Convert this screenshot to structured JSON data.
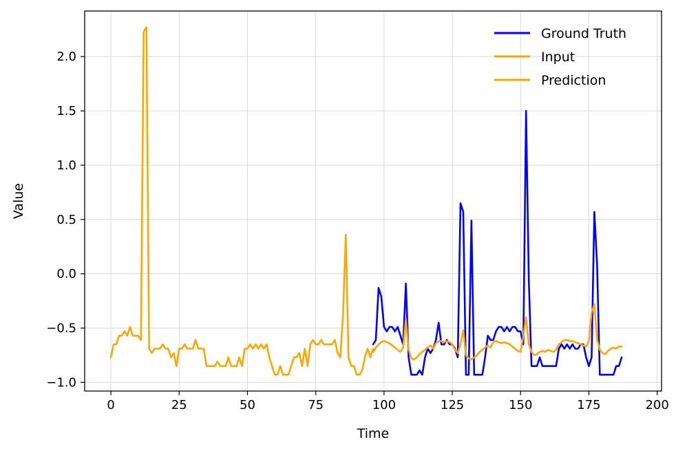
{
  "chart_data": {
    "type": "line",
    "xlabel": "Time",
    "ylabel": "Value",
    "xlim": [
      -9.6,
      201.6
    ],
    "ylim": [
      -1.08,
      2.42
    ],
    "xticks": [
      0,
      25,
      50,
      75,
      100,
      125,
      150,
      175,
      200
    ],
    "xtick_labels": [
      "0",
      "25",
      "50",
      "75",
      "100",
      "125",
      "150",
      "175",
      "200"
    ],
    "yticks": [
      -1.0,
      -0.5,
      0.0,
      0.5,
      1.0,
      1.5,
      2.0
    ],
    "ytick_labels": [
      "−1.0",
      "−0.5",
      "0.0",
      "0.5",
      "1.0",
      "1.5",
      "2.0"
    ],
    "grid": true,
    "legend_position": "top-right",
    "series": [
      {
        "name": "Ground Truth",
        "color": "#0000ff",
        "x_start": 96,
        "values": [
          -0.65,
          -0.61,
          -0.13,
          -0.21,
          -0.49,
          -0.53,
          -0.49,
          -0.49,
          -0.53,
          -0.49,
          -0.57,
          -0.65,
          -0.09,
          -0.77,
          -0.93,
          -0.93,
          -0.93,
          -0.89,
          -0.93,
          -0.77,
          -0.69,
          -0.73,
          -0.69,
          -0.61,
          -0.45,
          -0.65,
          -0.65,
          -0.61,
          -0.65,
          -0.65,
          -0.69,
          -0.77,
          0.65,
          0.57,
          -0.93,
          -0.93,
          0.49,
          -0.93,
          -0.93,
          -0.93,
          -0.93,
          -0.77,
          -0.57,
          -0.61,
          -0.61,
          -0.53,
          -0.49,
          -0.49,
          -0.53,
          -0.49,
          -0.53,
          -0.49,
          -0.49,
          -0.53,
          -0.53,
          -0.65,
          1.5,
          -0.05,
          -0.85,
          -0.85,
          -0.85,
          -0.77,
          -0.85,
          -0.85,
          -0.85,
          -0.85,
          -0.85,
          -0.85,
          -0.69,
          -0.65,
          -0.69,
          -0.65,
          -0.69,
          -0.65,
          -0.69,
          -0.69,
          -0.65,
          -0.65,
          -0.77,
          -0.85,
          -0.77,
          0.57,
          0.09,
          -0.93,
          -0.93,
          -0.93,
          -0.93,
          -0.93,
          -0.93,
          -0.85,
          -0.85,
          -0.77
        ]
      },
      {
        "name": "Input",
        "color": "#ffa500",
        "x_start": 0,
        "values": [
          -0.77,
          -0.65,
          -0.65,
          -0.57,
          -0.57,
          -0.53,
          -0.57,
          -0.49,
          -0.57,
          -0.57,
          -0.57,
          -0.61,
          2.23,
          2.27,
          -0.69,
          -0.73,
          -0.69,
          -0.69,
          -0.69,
          -0.65,
          -0.69,
          -0.69,
          -0.77,
          -0.73,
          -0.85,
          -0.69,
          -0.69,
          -0.65,
          -0.69,
          -0.69,
          -0.69,
          -0.61,
          -0.69,
          -0.69,
          -0.69,
          -0.85,
          -0.85,
          -0.85,
          -0.85,
          -0.81,
          -0.85,
          -0.85,
          -0.85,
          -0.77,
          -0.85,
          -0.85,
          -0.85,
          -0.77,
          -0.85,
          -0.69,
          -0.69,
          -0.65,
          -0.69,
          -0.65,
          -0.69,
          -0.65,
          -0.69,
          -0.65,
          -0.77,
          -0.85,
          -0.93,
          -0.93,
          -0.85,
          -0.93,
          -0.93,
          -0.93,
          -0.85,
          -0.77,
          -0.77,
          -0.73,
          -0.85,
          -0.69,
          -0.85,
          -0.65,
          -0.61,
          -0.65,
          -0.65,
          -0.61,
          -0.65,
          -0.65,
          -0.65,
          -0.65,
          -0.61,
          -0.73,
          -0.77,
          -0.37,
          0.36,
          -0.77,
          -0.85,
          -0.85,
          -0.93,
          -0.93,
          -0.89,
          -0.77,
          -0.69,
          -0.77,
          -0.69
        ]
      },
      {
        "name": "Prediction",
        "color": "#ffa500",
        "x_start": 96,
        "values": [
          -0.72,
          -0.68,
          -0.65,
          -0.63,
          -0.62,
          -0.63,
          -0.64,
          -0.66,
          -0.68,
          -0.7,
          -0.72,
          -0.68,
          -0.42,
          -0.7,
          -0.78,
          -0.79,
          -0.77,
          -0.74,
          -0.72,
          -0.7,
          -0.68,
          -0.66,
          -0.69,
          -0.64,
          -0.62,
          -0.62,
          -0.63,
          -0.62,
          -0.63,
          -0.65,
          -0.7,
          -0.73,
          -0.65,
          -0.52,
          -0.75,
          -0.78,
          -0.79,
          -0.77,
          -0.75,
          -0.72,
          -0.7,
          -0.68,
          -0.66,
          -0.68,
          -0.63,
          -0.62,
          -0.63,
          -0.64,
          -0.63,
          -0.64,
          -0.65,
          -0.67,
          -0.69,
          -0.71,
          -0.72,
          -0.57,
          -0.4,
          -0.65,
          -0.72,
          -0.75,
          -0.74,
          -0.72,
          -0.71,
          -0.72,
          -0.7,
          -0.71,
          -0.72,
          -0.7,
          -0.65,
          -0.63,
          -0.61,
          -0.61,
          -0.62,
          -0.62,
          -0.63,
          -0.64,
          -0.65,
          -0.66,
          -0.67,
          -0.62,
          -0.36,
          -0.28,
          -0.6,
          -0.7,
          -0.73,
          -0.74,
          -0.71,
          -0.69,
          -0.68,
          -0.69,
          -0.67,
          -0.67
        ]
      }
    ]
  }
}
